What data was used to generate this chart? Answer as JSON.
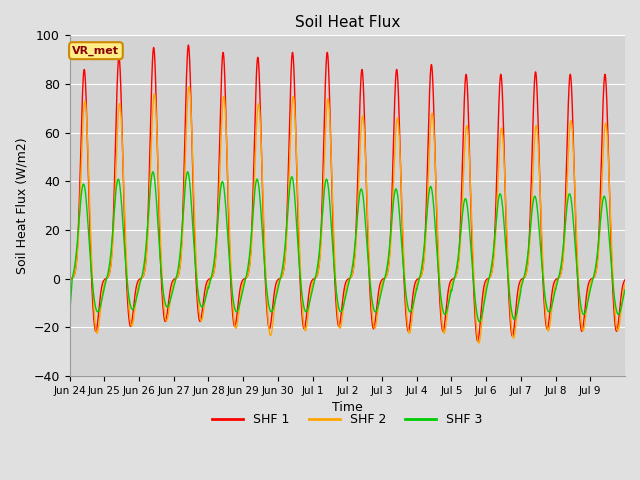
{
  "title": "Soil Heat Flux",
  "xlabel": "Time",
  "ylabel": "Soil Heat Flux (W/m2)",
  "ylim": [
    -40,
    100
  ],
  "yticks": [
    -40,
    -20,
    0,
    20,
    40,
    60,
    80,
    100
  ],
  "colors": {
    "SHF 1": "#FF0000",
    "SHF 2": "#FFA500",
    "SHF 3": "#00CC00"
  },
  "legend_labels": [
    "SHF 1",
    "SHF 2",
    "SHF 3"
  ],
  "annotation": "VR_met",
  "background_color": "#E0E0E0",
  "plot_bg_color": "#D3D3D3",
  "grid_color": "#FFFFFF",
  "num_days": 16,
  "points_per_day": 288,
  "shf1_peaks": [
    86,
    91,
    95,
    96,
    93,
    91,
    93,
    93,
    86,
    86,
    88,
    84,
    84,
    85,
    84,
    84
  ],
  "shf1_troughs": [
    -22,
    -20,
    -18,
    -18,
    -20,
    -21,
    -21,
    -20,
    -21,
    -22,
    -22,
    -26,
    -24,
    -21,
    -22,
    -22
  ],
  "shf2_peaks": [
    73,
    72,
    76,
    79,
    75,
    72,
    75,
    74,
    67,
    66,
    68,
    63,
    62,
    63,
    65,
    64
  ],
  "shf2_troughs": [
    -23,
    -20,
    -18,
    -18,
    -21,
    -24,
    -22,
    -21,
    -21,
    -23,
    -23,
    -27,
    -25,
    -22,
    -22,
    -22
  ],
  "shf3_peaks": [
    39,
    41,
    44,
    44,
    40,
    41,
    42,
    41,
    37,
    37,
    38,
    33,
    35,
    34,
    35,
    34
  ],
  "shf3_troughs": [
    -14,
    -13,
    -12,
    -12,
    -14,
    -14,
    -14,
    -14,
    -14,
    -14,
    -15,
    -18,
    -17,
    -14,
    -15,
    -15
  ],
  "tick_labels": [
    "Jun 24",
    "Jun 25",
    "Jun 26",
    "Jun 27",
    "Jun 28",
    "Jun 29",
    "Jun 30",
    "Jul 1",
    "Jul 2",
    "Jul 3",
    "Jul 4",
    "Jul 5",
    "Jul 6",
    "Jul 7",
    "Jul 8",
    "Jul 9"
  ]
}
